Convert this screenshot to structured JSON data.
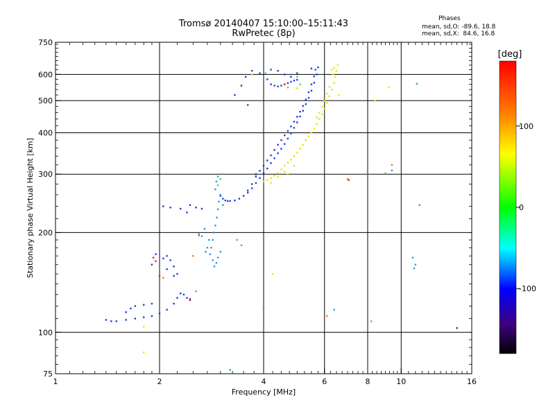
{
  "chart_data": {
    "type": "scatter",
    "title": "Tromsø 20140407 15:10:00–15:11:43",
    "subtitle": "RwPretec (8p)",
    "xlabel": "Frequency [MHz]",
    "ylabel": "Stationary phase Virtual Height [km]",
    "x_scale": "log",
    "y_scale": "log",
    "xlim": [
      1,
      16
    ],
    "ylim": [
      75,
      750
    ],
    "x_ticks": [
      1,
      2,
      4,
      6,
      8,
      10,
      16
    ],
    "y_ticks": [
      75,
      100,
      200,
      300,
      400,
      500,
      600,
      750
    ],
    "grid": true,
    "stats": {
      "header": "Phases",
      "line_o": "mean, sd,O: -89.6, 18.8",
      "line_x": "mean, sd,X:  84.6, 16.8"
    },
    "colorbar": {
      "label": "[deg]",
      "min": -180,
      "max": 180,
      "ticks": [
        100,
        0,
        -100
      ],
      "colors": [
        "#ff0000",
        "#ff8000",
        "#ffff00",
        "#00ff00",
        "#00ffff",
        "#0000ff",
        "#400080",
        "#000000"
      ]
    },
    "series": [
      {
        "phase": -100,
        "color": "#1e3cdc",
        "points": [
          [
            1.4,
            109
          ],
          [
            1.45,
            108
          ],
          [
            1.5,
            108
          ],
          [
            1.6,
            109
          ],
          [
            1.7,
            110
          ],
          [
            1.8,
            111
          ],
          [
            1.9,
            112
          ],
          [
            2.0,
            114
          ],
          [
            2.1,
            117
          ],
          [
            2.2,
            122
          ],
          [
            2.25,
            127
          ],
          [
            2.3,
            131
          ],
          [
            2.35,
            130
          ],
          [
            2.4,
            127
          ],
          [
            2.45,
            126
          ],
          [
            1.9,
            122
          ],
          [
            1.8,
            121
          ],
          [
            1.7,
            120
          ],
          [
            1.65,
            118
          ],
          [
            1.6,
            115
          ],
          [
            3.0,
            258
          ],
          [
            3.05,
            253
          ],
          [
            3.1,
            250
          ],
          [
            3.15,
            249
          ],
          [
            3.2,
            249
          ],
          [
            3.3,
            250
          ],
          [
            3.4,
            253
          ],
          [
            3.5,
            258
          ],
          [
            3.6,
            264
          ],
          [
            3.7,
            272
          ],
          [
            3.8,
            282
          ],
          [
            3.9,
            292
          ],
          [
            4.0,
            302
          ],
          [
            4.1,
            312
          ],
          [
            4.2,
            324
          ],
          [
            4.3,
            335
          ],
          [
            4.4,
            347
          ],
          [
            4.5,
            358
          ],
          [
            4.6,
            370
          ],
          [
            4.7,
            384
          ],
          [
            4.8,
            398
          ],
          [
            4.9,
            414
          ],
          [
            5.0,
            430
          ],
          [
            5.1,
            448
          ],
          [
            5.2,
            466
          ],
          [
            5.3,
            488
          ],
          [
            5.4,
            510
          ],
          [
            5.5,
            536
          ],
          [
            5.6,
            566
          ],
          [
            5.7,
            600
          ],
          [
            5.75,
            630
          ],
          [
            3.6,
            268
          ],
          [
            3.7,
            280
          ],
          [
            3.8,
            295
          ],
          [
            3.9,
            307
          ],
          [
            4.0,
            318
          ],
          [
            4.1,
            330
          ],
          [
            4.2,
            342
          ],
          [
            4.3,
            355
          ],
          [
            4.4,
            368
          ],
          [
            4.5,
            380
          ],
          [
            4.6,
            393
          ],
          [
            4.7,
            405
          ],
          [
            4.8,
            418
          ],
          [
            4.9,
            432
          ],
          [
            5.0,
            447
          ],
          [
            5.1,
            463
          ],
          [
            5.2,
            482
          ],
          [
            5.3,
            504
          ],
          [
            5.4,
            530
          ],
          [
            5.5,
            560
          ],
          [
            5.6,
            592
          ],
          [
            5.65,
            620
          ],
          [
            4.1,
            580
          ],
          [
            4.2,
            560
          ],
          [
            4.3,
            555
          ],
          [
            4.4,
            552
          ],
          [
            4.5,
            555
          ],
          [
            4.6,
            560
          ],
          [
            4.7,
            565
          ],
          [
            4.8,
            570
          ],
          [
            4.9,
            575
          ],
          [
            5.0,
            578
          ],
          [
            4.2,
            620
          ],
          [
            4.4,
            615
          ],
          [
            4.6,
            600
          ],
          [
            4.8,
            590
          ],
          [
            5.0,
            605
          ],
          [
            5.5,
            625
          ],
          [
            3.3,
            520
          ],
          [
            3.45,
            555
          ],
          [
            3.55,
            590
          ],
          [
            3.7,
            615
          ],
          [
            3.9,
            605
          ],
          [
            3.6,
            485
          ],
          [
            2.25,
            150
          ],
          [
            2.2,
            158
          ],
          [
            2.15,
            165
          ],
          [
            2.1,
            170
          ],
          [
            2.05,
            167
          ],
          [
            2.1,
            155
          ],
          [
            2.2,
            148
          ],
          [
            1.9,
            160
          ],
          [
            1.95,
            172
          ],
          [
            2.45,
            242
          ],
          [
            2.55,
            238
          ],
          [
            2.65,
            236
          ],
          [
            2.05,
            240
          ],
          [
            2.15,
            238
          ],
          [
            2.3,
            236
          ],
          [
            2.4,
            230
          ]
        ]
      },
      {
        "phase": -60,
        "color": "#1e9be6",
        "points": [
          [
            2.8,
            172
          ],
          [
            2.82,
            180
          ],
          [
            2.85,
            190
          ],
          [
            2.87,
            200
          ],
          [
            2.9,
            210
          ],
          [
            2.93,
            222
          ],
          [
            2.95,
            235
          ],
          [
            2.97,
            248
          ],
          [
            3.0,
            260
          ],
          [
            2.9,
            270
          ],
          [
            2.92,
            285
          ],
          [
            2.95,
            295
          ],
          [
            2.75,
            180
          ],
          [
            2.78,
            190
          ],
          [
            2.7,
            205
          ],
          [
            2.65,
            195
          ],
          [
            2.85,
            165
          ],
          [
            2.95,
            168
          ],
          [
            3.0,
            175
          ],
          [
            2.72,
            175
          ],
          [
            2.88,
            158
          ],
          [
            2.92,
            162
          ],
          [
            3.05,
            242
          ],
          [
            2.6,
            196
          ],
          [
            4.0,
            118
          ],
          [
            6.4,
            117
          ],
          [
            10.8,
            168
          ],
          [
            11.0,
            160
          ],
          [
            10.9,
            156
          ],
          [
            11.1,
            562
          ],
          [
            11.3,
            242
          ],
          [
            9.4,
            308
          ],
          [
            3.2,
            77
          ]
        ]
      },
      {
        "phase": 100,
        "color": "#e6e600",
        "points": [
          [
            4.0,
            285
          ],
          [
            4.1,
            288
          ],
          [
            4.2,
            292
          ],
          [
            4.3,
            297
          ],
          [
            4.4,
            302
          ],
          [
            4.5,
            310
          ],
          [
            4.6,
            318
          ],
          [
            4.7,
            325
          ],
          [
            4.8,
            332
          ],
          [
            4.9,
            340
          ],
          [
            5.0,
            348
          ],
          [
            5.1,
            358
          ],
          [
            5.2,
            368
          ],
          [
            5.3,
            380
          ],
          [
            5.4,
            390
          ],
          [
            5.5,
            400
          ],
          [
            5.6,
            412
          ],
          [
            5.7,
            425
          ],
          [
            5.8,
            440
          ],
          [
            5.9,
            455
          ],
          [
            6.0,
            472
          ],
          [
            6.1,
            492
          ],
          [
            6.2,
            515
          ],
          [
            6.3,
            540
          ],
          [
            6.4,
            565
          ],
          [
            6.45,
            590
          ],
          [
            6.5,
            615
          ],
          [
            6.55,
            640
          ],
          [
            6.4,
            628
          ],
          [
            6.3,
            620
          ],
          [
            6.35,
            600
          ],
          [
            6.2,
            550
          ],
          [
            6.1,
            525
          ],
          [
            6.0,
            500
          ],
          [
            5.9,
            480
          ],
          [
            5.8,
            460
          ],
          [
            5.7,
            445
          ],
          [
            4.7,
            300
          ],
          [
            4.6,
            305
          ],
          [
            4.9,
            318
          ],
          [
            4.4,
            295
          ],
          [
            4.2,
            282
          ],
          [
            5.0,
            545
          ],
          [
            6.6,
            520
          ],
          [
            4.25,
            150
          ],
          [
            1.8,
            87
          ],
          [
            1.8,
            104
          ],
          [
            8.4,
            500
          ],
          [
            9.2,
            548
          ],
          [
            3.7,
            600
          ]
        ]
      },
      {
        "phase": 20,
        "color": "#3cdc3c",
        "points": [
          [
            3.0,
            290
          ],
          [
            2.95,
            278
          ],
          [
            8.2,
            108
          ],
          [
            9.0,
            302
          ],
          [
            4.7,
            548
          ],
          [
            5.0,
            590
          ],
          [
            4.05,
            605
          ],
          [
            5.1,
            560
          ]
        ]
      },
      {
        "phase": 140,
        "color": "#f07814",
        "points": [
          [
            2.5,
            170
          ],
          [
            3.35,
            190
          ],
          [
            3.45,
            183
          ],
          [
            2.55,
            133
          ],
          [
            7.0,
            290
          ],
          [
            2.05,
            146
          ],
          [
            9.4,
            320
          ],
          [
            6.1,
            112
          ],
          [
            2.6,
            198
          ],
          [
            8.0,
            298
          ]
        ]
      },
      {
        "phase": 175,
        "color": "#e61e1e",
        "points": [
          [
            1.95,
            164
          ],
          [
            2.0,
            148
          ],
          [
            2.45,
            125
          ],
          [
            7.05,
            288
          ],
          [
            4.6,
            560
          ],
          [
            1.92,
            168
          ]
        ]
      },
      {
        "phase": -150,
        "color": "#283278",
        "points": [
          [
            14.5,
            103
          ],
          [
            3.8,
            300
          ]
        ]
      }
    ]
  }
}
